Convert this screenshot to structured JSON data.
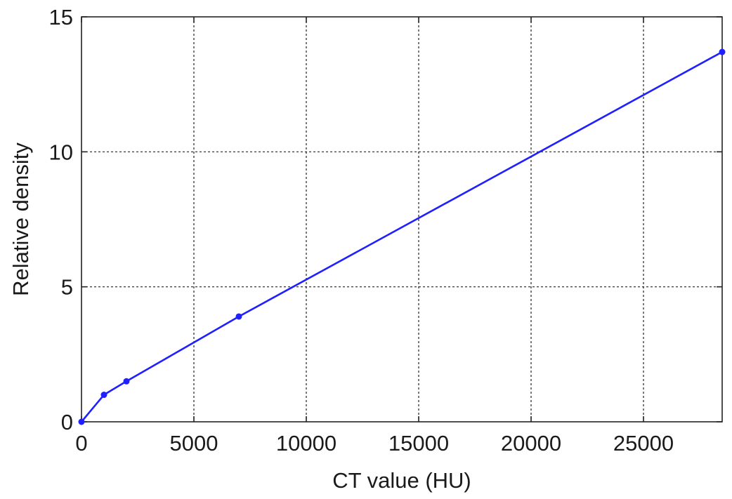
{
  "chart_data": {
    "type": "line",
    "title": "",
    "xlabel": "CT value (HU)",
    "ylabel": "Relative density",
    "xlim": [
      0,
      28500
    ],
    "ylim": [
      0,
      15
    ],
    "xticks": [
      0,
      5000,
      10000,
      15000,
      20000,
      25000
    ],
    "yticks": [
      0,
      5,
      10,
      15
    ],
    "xtick_labels": [
      "0",
      "5000",
      "10000",
      "15000",
      "20000",
      "25000"
    ],
    "ytick_labels": [
      "0",
      "5",
      "10",
      "15"
    ],
    "grid": true,
    "legend": "none",
    "series": [
      {
        "color": "#1f1fff",
        "marker": "dot",
        "x": [
          0,
          1000,
          2000,
          7000,
          28500
        ],
        "y": [
          0,
          1.0,
          1.5,
          3.9,
          13.7
        ]
      }
    ]
  }
}
